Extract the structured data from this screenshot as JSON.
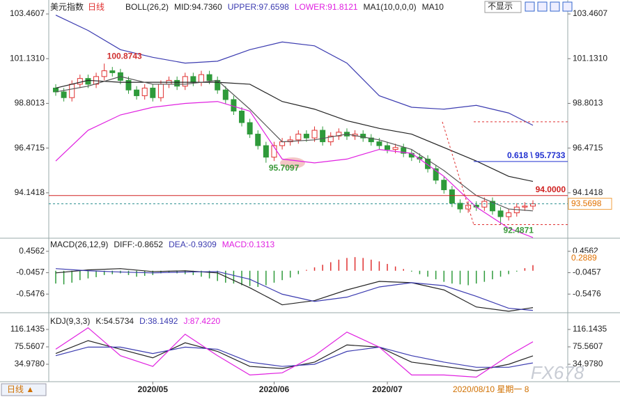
{
  "header": {
    "title": "美元指数",
    "period": "日线",
    "dropdown": "不显示",
    "bottom_button": "日线 ▲",
    "cursor_date": "2020/08/10 星期一 8",
    "watermark": "FX678"
  },
  "chart_data": [
    {
      "type": "candlestick",
      "indicators": [
        "BOLL(26,2)",
        "MA1(10,0,0,0)"
      ],
      "ylim": [
        91.85,
        103.97
      ],
      "yticks": [
        103.4607,
        {
          "value": 101.131,
          "label": "101.1310"
        },
        98.8013,
        96.4715,
        94.1418
      ],
      "xticks": [
        {
          "value": 12,
          "label": "2020/05"
        },
        {
          "value": 27,
          "label": "2020/06"
        },
        {
          "value": 41,
          "label": "2020/07"
        }
      ],
      "candles": {
        "open": [
          99.6,
          99.4,
          99.1,
          99.8,
          100.1,
          99.8,
          100.2,
          100.5,
          100.4,
          100.0,
          99.5,
          99.2,
          99.6,
          99.1,
          99.8,
          100.0,
          99.7,
          100.2,
          99.9,
          100.3,
          100.0,
          99.5,
          99.0,
          98.4,
          97.8,
          97.2,
          96.6,
          96.0,
          96.6,
          96.8,
          96.9,
          97.2,
          97.0,
          97.4,
          96.8,
          97.1,
          97.3,
          97.1,
          97.2,
          97.0,
          96.8,
          96.6,
          96.4,
          96.5,
          96.2,
          96.0,
          95.9,
          95.4,
          94.8,
          94.3,
          93.6,
          93.3,
          93.5,
          93.4,
          93.7,
          93.2,
          92.9,
          93.1,
          93.4,
          93.45
        ],
        "high": [
          99.8,
          99.6,
          100.0,
          100.3,
          100.3,
          100.4,
          100.8743,
          100.7,
          100.6,
          100.2,
          99.7,
          99.8,
          99.8,
          100.0,
          100.2,
          100.2,
          100.4,
          100.4,
          100.5,
          100.5,
          100.2,
          99.7,
          99.2,
          98.6,
          98.0,
          97.4,
          96.8,
          96.8,
          97.0,
          97.1,
          97.4,
          97.4,
          97.6,
          97.6,
          97.3,
          97.5,
          97.5,
          97.4,
          97.4,
          97.2,
          97.0,
          96.8,
          96.7,
          96.7,
          96.4,
          96.2,
          96.1,
          95.6,
          95.0,
          94.5,
          93.8,
          93.7,
          93.7,
          93.9,
          93.9,
          93.4,
          93.3,
          93.6,
          93.65,
          93.75
        ],
        "low": [
          99.2,
          98.9,
          98.9,
          99.6,
          99.6,
          99.6,
          100.0,
          100.2,
          99.8,
          99.3,
          99.0,
          99.0,
          98.9,
          98.9,
          99.6,
          99.5,
          99.5,
          99.7,
          99.7,
          99.8,
          99.3,
          98.8,
          98.2,
          97.6,
          97.0,
          96.4,
          95.7097,
          95.8,
          96.4,
          96.6,
          96.7,
          96.8,
          96.8,
          96.6,
          96.6,
          96.9,
          96.9,
          96.9,
          96.8,
          96.6,
          96.4,
          96.2,
          96.2,
          96.0,
          95.8,
          95.7,
          95.2,
          94.6,
          94.1,
          93.4,
          93.1,
          93.1,
          93.2,
          93.2,
          93.0,
          92.4871,
          92.7,
          92.9,
          93.2,
          93.25
        ],
        "close": [
          99.4,
          99.1,
          99.8,
          100.1,
          99.8,
          100.2,
          100.5,
          100.4,
          100.0,
          99.5,
          99.2,
          99.6,
          99.1,
          99.8,
          100.0,
          99.7,
          100.2,
          99.9,
          100.3,
          100.0,
          99.5,
          99.0,
          98.4,
          97.8,
          97.2,
          96.6,
          96.0,
          96.6,
          96.8,
          96.9,
          97.2,
          97.0,
          97.4,
          96.8,
          97.1,
          97.3,
          97.1,
          97.2,
          97.0,
          96.8,
          96.6,
          96.4,
          96.5,
          96.2,
          96.0,
          95.9,
          95.4,
          94.8,
          94.3,
          93.6,
          93.3,
          93.5,
          93.4,
          93.7,
          93.2,
          92.9,
          93.1,
          93.4,
          93.45,
          93.5698
        ]
      },
      "line_x": [
        0,
        4,
        8,
        12,
        16,
        20,
        24,
        28,
        32,
        36,
        40,
        44,
        48,
        52,
        56,
        59
      ],
      "series": [
        {
          "name": "MID:94.7360",
          "color": "#222222",
          "values": [
            99.6,
            100.0,
            99.9,
            99.9,
            99.9,
            99.9,
            99.8,
            98.9,
            98.5,
            97.9,
            97.5,
            97.2,
            96.5,
            95.8,
            95.0,
            94.736
          ]
        },
        {
          "name": "UPPER:97.6598",
          "color": "#3b3bb0",
          "values": [
            103.4,
            102.6,
            101.6,
            101.2,
            100.9,
            101.0,
            101.6,
            102.0,
            101.8,
            100.9,
            99.2,
            98.6,
            98.5,
            98.7,
            98.3,
            97.6598
          ]
        },
        {
          "name": "LOWER:91.8121",
          "color": "#e020e0",
          "values": [
            95.8,
            97.4,
            98.2,
            98.6,
            98.8,
            98.9,
            98.4,
            95.9,
            95.7,
            95.9,
            96.4,
            96.2,
            95.0,
            93.4,
            92.3,
            91.8121
          ]
        },
        {
          "name": "MA10",
          "color": "#555555",
          "values": [
            99.4,
            99.7,
            100.2,
            99.8,
            99.8,
            100.0,
            98.5,
            96.8,
            96.9,
            97.2,
            96.9,
            96.4,
            95.3,
            94.0,
            93.3,
            93.2
          ]
        }
      ],
      "level": {
        "value": 94,
        "label": "94.0000",
        "color": "#d02020"
      },
      "current": {
        "value": 93.5698,
        "color": "#2a8f8f"
      },
      "fib": {
        "high": 97.84,
        "low": 92.4871,
        "level": {
          "value": 95.7733,
          "label": "0.618 \\ 95.7733"
        }
      }
    },
    {
      "type": "bar",
      "title": "MACD(26,12,9)",
      "ylim": [
        -0.92,
        0.715
      ],
      "yticks": [
        0.4562,
        -0.0457,
        -0.5476
      ],
      "hist_name": "MACD:0.1313",
      "marker": 0.2889,
      "values": [
        -0.3,
        -0.32,
        -0.28,
        -0.22,
        -0.18,
        -0.15,
        -0.1,
        -0.08,
        -0.06,
        -0.1,
        -0.14,
        -0.12,
        -0.1,
        -0.06,
        -0.04,
        -0.06,
        -0.08,
        -0.1,
        -0.14,
        -0.18,
        -0.24,
        -0.28,
        -0.3,
        -0.34,
        -0.36,
        -0.38,
        -0.34,
        -0.28,
        -0.22,
        -0.16,
        -0.08,
        0.02,
        0.08,
        0.14,
        0.2,
        0.26,
        0.3,
        0.32,
        0.3,
        0.26,
        0.22,
        0.16,
        0.1,
        0.04,
        -0.02,
        -0.08,
        -0.14,
        -0.2,
        -0.26,
        -0.3,
        -0.32,
        -0.34,
        -0.3,
        -0.26,
        -0.2,
        -0.14,
        -0.08,
        -0.02,
        0.06,
        0.1313
      ],
      "up_color": "#e03030",
      "down_color": "#2e9a3a",
      "series": [
        {
          "name": "DIFF:-0.8652",
          "color": "#222222",
          "values": [
            -0.05,
            0.02,
            0.05,
            -0.02,
            0.0,
            -0.05,
            -0.4,
            -0.8,
            -0.7,
            -0.45,
            -0.25,
            -0.28,
            -0.45,
            -0.85,
            -0.95,
            -0.8652
          ]
        },
        {
          "name": "DEA:-0.9309",
          "color": "#3b3bb0",
          "values": [
            0.05,
            0.0,
            -0.03,
            -0.05,
            -0.03,
            -0.02,
            -0.2,
            -0.55,
            -0.72,
            -0.62,
            -0.38,
            -0.28,
            -0.35,
            -0.6,
            -0.88,
            -0.9309
          ]
        }
      ]
    },
    {
      "type": "line",
      "title": "KDJ(9,3,3)",
      "ylim": [
        -0.74,
        145.4
      ],
      "yticks": [
        116.1435,
        75.5607,
        {
          "value": 34.978,
          "label": "34.9780"
        }
      ],
      "series": [
        {
          "name": "K:54.5734",
          "color": "#222222",
          "values": [
            60,
            90,
            70,
            50,
            85,
            65,
            30,
            25,
            40,
            80,
            75,
            40,
            30,
            20,
            35,
            54.5734
          ]
        },
        {
          "name": "D:38.1492",
          "color": "#3b3bb0",
          "values": [
            55,
            75,
            75,
            60,
            75,
            70,
            40,
            30,
            35,
            65,
            75,
            55,
            40,
            28,
            28,
            38.1492
          ]
        },
        {
          "name": "J:87.4220",
          "color": "#e020e0",
          "values": [
            70,
            120,
            55,
            30,
            105,
            55,
            10,
            15,
            55,
            110,
            75,
            10,
            10,
            5,
            55,
            87.422
          ]
        }
      ]
    }
  ]
}
